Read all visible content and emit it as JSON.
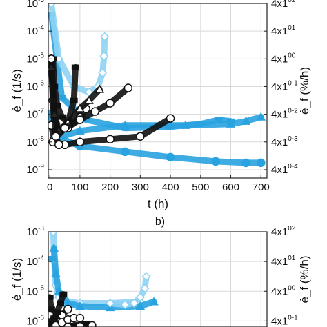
{
  "colors": {
    "blue": "#29a3e0",
    "light_blue": "#8fd3f4",
    "black": "#111111",
    "grid": "#d9d9d9"
  },
  "chart_data": [
    {
      "type": "scatter",
      "title": "",
      "xlabel": "t (h)",
      "ylabel_left": "ė_f (1/s)",
      "ylabel_right": "ė_f (%/h)",
      "xlim": [
        -5,
        720
      ],
      "ylim_log10": [
        -9.3,
        -3
      ],
      "log_scale_y": true,
      "grid": true,
      "x_ticks": [
        0,
        100,
        200,
        300,
        400,
        500,
        600,
        700
      ],
      "x_tick_labels": [
        "0",
        "100",
        "200",
        "300",
        "400",
        "500",
        "600",
        "700"
      ],
      "y_ticks": [
        -9,
        -8,
        -7,
        -6,
        -5,
        -4,
        -3
      ],
      "y_tick_labels": [
        "10-9",
        "10-8",
        "10-7",
        "10-6",
        "10-5",
        "10-4",
        "10-3"
      ],
      "right_tick_labels": [
        "4x10-4",
        "4x10-3",
        "4x10-2",
        "4x10-1",
        "4x100",
        "4x101",
        "4x102"
      ],
      "series": [
        {
          "marker": "square",
          "color": "blue",
          "x": [
            5,
            40,
            120,
            250,
            400,
            500,
            560,
            600
          ],
          "y": [
            -3.4,
            -6.4,
            -7.2,
            -7.5,
            -7.45,
            -7.35,
            -7.2,
            -7.25
          ]
        },
        {
          "marker": "triangle",
          "color": "blue",
          "x": [
            10,
            100,
            250,
            450,
            600,
            650,
            700
          ],
          "y": [
            -7.9,
            -7.6,
            -7.4,
            -7.4,
            -7.35,
            -7.25,
            -7.1
          ]
        },
        {
          "marker": "circle",
          "color": "blue",
          "x": [
            2,
            20,
            100,
            250,
            400,
            550,
            650,
            700
          ],
          "y": [
            -7.0,
            -7.8,
            -8.15,
            -8.35,
            -8.55,
            -8.7,
            -8.75,
            -8.75
          ]
        },
        {
          "marker": "diamond",
          "color": "light_blue",
          "x": [
            5,
            30,
            80,
            130,
            160,
            175,
            180,
            182
          ],
          "y": [
            -3.0,
            -5.0,
            -6.0,
            -6.2,
            -6.0,
            -5.5,
            -4.9,
            -4.2
          ]
        },
        {
          "marker": "square",
          "color": "black",
          "x": [
            10,
            15,
            25,
            40,
            60,
            80,
            85
          ],
          "y": [
            -5.0,
            -6.0,
            -6.7,
            -7.1,
            -7.3,
            -6.5,
            -5.3
          ]
        },
        {
          "marker": "circle",
          "color": "black",
          "x": [
            5,
            10,
            15,
            30,
            60,
            100,
            120
          ],
          "y": [
            -5.0,
            -6.5,
            -7.3,
            -7.6,
            -7.5,
            -7.1,
            -6.8
          ]
        },
        {
          "marker": "triangle",
          "color": "black",
          "x": [
            5,
            15,
            30,
            60,
            100,
            130,
            165
          ],
          "y": [
            -5.3,
            -7.0,
            -7.6,
            -7.3,
            -6.8,
            -6.5,
            -6.1
          ]
        },
        {
          "marker": "circle",
          "color": "black",
          "x": [
            5,
            15,
            50,
            100,
            150,
            200,
            260
          ],
          "y": [
            -7.4,
            -7.9,
            -7.5,
            -7.2,
            -6.9,
            -6.6,
            -6.05
          ]
        },
        {
          "marker": "circle",
          "color": "black",
          "x": [
            10,
            50,
            100,
            200,
            300,
            400
          ],
          "y": [
            -8.0,
            -8.1,
            -8.0,
            -7.9,
            -7.8,
            -7.15
          ]
        },
        {
          "marker": "circle",
          "color": "black",
          "x": [
            5,
            20,
            30
          ],
          "y": [
            -5.0,
            -7.8,
            -8.1
          ]
        }
      ]
    },
    {
      "type": "scatter",
      "title": "b)",
      "ylabel_left": "ė_f (1/s)",
      "ylabel_right": "ė_f (%/h)",
      "ylim_log10": [
        -6.2,
        -3
      ],
      "log_scale_y": true,
      "grid": true,
      "y_ticks": [
        -6,
        -5,
        -4,
        -3
      ],
      "y_tick_labels": [
        "10-6",
        "10-5",
        "10-4",
        "10-3"
      ],
      "right_tick_labels": [
        "4x10-1",
        "4x100",
        "4x101",
        "4x102"
      ],
      "series": [
        {
          "marker": "diamond",
          "color": "light_blue",
          "x": [
            12,
            15,
            20,
            30,
            60,
            100,
            200,
            300
          ],
          "y": [
            -3.0,
            -4.0,
            -4.8,
            -5.2,
            -5.35,
            -5.4,
            -5.4,
            -5.35
          ]
        },
        {
          "marker": "square",
          "color": "blue",
          "x": [
            8
          ],
          "y": [
            -3.9
          ]
        },
        {
          "marker": "triangle",
          "color": "blue",
          "x": [
            14,
            20,
            30,
            60,
            100,
            200,
            300,
            345
          ],
          "y": [
            -3.55,
            -4.4,
            -5.0,
            -5.4,
            -5.5,
            -5.55,
            -5.5,
            -5.35
          ]
        },
        {
          "marker": "diamond",
          "color": "light_blue",
          "x": [
            200,
            250,
            280,
            300,
            315,
            320
          ],
          "y": [
            -5.4,
            -5.45,
            -5.4,
            -5.2,
            -4.9,
            -4.5
          ]
        },
        {
          "marker": "square",
          "color": "black",
          "x": [
            0,
            5,
            10,
            20,
            30
          ],
          "y": [
            -5.2,
            -5.6,
            -5.9,
            -6.0,
            -6.1
          ]
        },
        {
          "marker": "circle",
          "color": "black",
          "x": [
            0,
            10,
            20,
            40,
            60
          ],
          "y": [
            -5.8,
            -6.0,
            -6.0,
            -5.8,
            -5.6
          ]
        },
        {
          "marker": "square",
          "color": "black",
          "x": [
            5,
            15,
            25,
            35,
            45
          ],
          "y": [
            -6.1,
            -5.9,
            -5.7,
            -5.4,
            -5.1
          ]
        },
        {
          "marker": "circle",
          "color": "black",
          "x": [
            20,
            40,
            60,
            80,
            100
          ],
          "y": [
            -6.15,
            -6.05,
            -5.95,
            -5.9,
            -5.9
          ]
        },
        {
          "marker": "square",
          "color": "black",
          "x": [
            80,
            120
          ],
          "y": [
            -6.15,
            -6.1
          ]
        },
        {
          "marker": "circle",
          "color": "black",
          "x": [
            60,
            100,
            140
          ],
          "y": [
            -6.2,
            -6.18,
            -6.15
          ]
        }
      ]
    }
  ]
}
